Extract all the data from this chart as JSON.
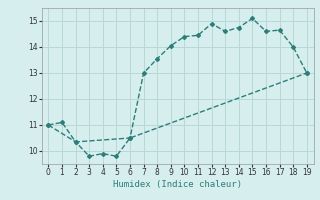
{
  "xlabel": "Humidex (Indice chaleur)",
  "ylabel": "",
  "xlim": [
    -0.5,
    19.5
  ],
  "ylim": [
    9.5,
    15.5
  ],
  "yticks": [
    10,
    11,
    12,
    13,
    14,
    15
  ],
  "xticks": [
    0,
    1,
    2,
    3,
    4,
    5,
    6,
    7,
    8,
    9,
    10,
    11,
    12,
    13,
    14,
    15,
    16,
    17,
    18,
    19
  ],
  "line_color": "#2d7d78",
  "bg_color": "#d6eeee",
  "grid_color": "#b8d8d8",
  "upper_x": [
    0,
    1,
    2,
    6,
    7,
    8,
    9,
    10,
    11,
    12,
    13,
    14,
    15,
    16,
    17,
    18,
    19
  ],
  "upper_y": [
    11.0,
    11.1,
    10.35,
    10.5,
    13.0,
    13.55,
    14.05,
    14.4,
    14.45,
    14.9,
    14.6,
    14.75,
    15.1,
    14.6,
    14.65,
    14.0,
    13.0
  ],
  "lower_x": [
    0,
    2,
    3,
    4,
    5,
    6,
    19
  ],
  "lower_y": [
    11.0,
    10.35,
    9.8,
    9.9,
    9.8,
    10.5,
    13.0
  ]
}
